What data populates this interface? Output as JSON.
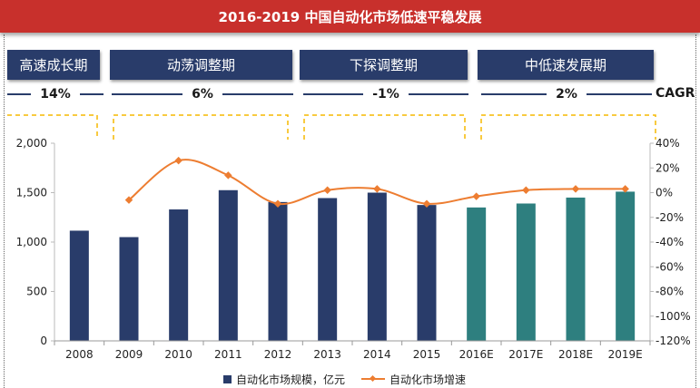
{
  "title": "2016-2019 中国自动化市场低速平稳发展",
  "phases": [
    {
      "label": "高速成长期",
      "cagr": "14%"
    },
    {
      "label": "动荡调整期",
      "cagr": "6%"
    },
    {
      "label": "下探调整期",
      "cagr": "-1%"
    },
    {
      "label": "中低速发展期",
      "cagr": "2%"
    }
  ],
  "cagr_label": "CAGR",
  "colors": {
    "title_bg": "#c8302c",
    "actual_bar": "#293c6a",
    "forecast_bar": "#2e7f7f",
    "growth_line": "#ed7d31",
    "bracket": "#f5b800"
  },
  "chart_data": {
    "type": "bar",
    "categories": [
      "2008",
      "2009",
      "2010",
      "2011",
      "2012",
      "2013",
      "2014",
      "2015",
      "2016E",
      "2017E",
      "2018E",
      "2019E"
    ],
    "series": [
      {
        "name": "自动化市场规模，亿元",
        "type": "bar",
        "axis": "left",
        "values": [
          1115,
          1050,
          1330,
          1525,
          1405,
          1445,
          1500,
          1375,
          1350,
          1390,
          1450,
          1510
        ]
      },
      {
        "name": "自动化市场增速",
        "type": "line",
        "axis": "right",
        "values": [
          null,
          -6,
          26,
          14,
          -9,
          2,
          3,
          -9,
          -3,
          2,
          3,
          3
        ]
      }
    ],
    "forecast_from_index": 8,
    "y_left": {
      "min": 0,
      "max": 2000,
      "ticks": [
        0,
        500,
        1000,
        1500,
        2000
      ],
      "tick_labels": [
        "0",
        "500",
        "1,000",
        "1,500",
        "2,000"
      ]
    },
    "y_right": {
      "min": -120,
      "max": 40,
      "ticks": [
        -120,
        -100,
        -80,
        -60,
        -40,
        -20,
        0,
        20,
        40
      ],
      "tick_labels": [
        "-120%",
        "-100%",
        "-80%",
        "-60%",
        "-40%",
        "-20%",
        "0%",
        "20%",
        "40%"
      ]
    },
    "legend_position": "bottom-center",
    "grid": false
  }
}
